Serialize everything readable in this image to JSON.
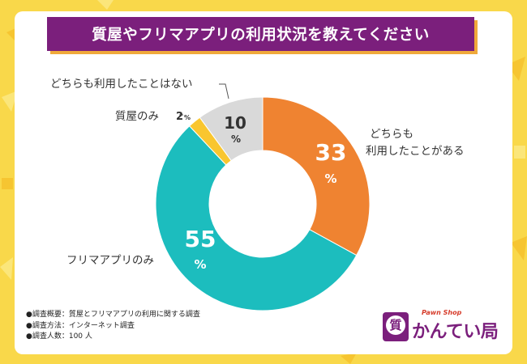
{
  "title": "質屋やフリマアプリの利用状況を教えてください",
  "chart_data": {
    "type": "pie",
    "categories": [
      "どちらも利用したことがある",
      "フリマアプリのみ",
      "質屋のみ",
      "どちらも利用したことはない"
    ],
    "values": [
      33,
      55,
      2,
      10
    ],
    "unit": "%",
    "value_labels": [
      "33",
      "55",
      "2",
      "10"
    ],
    "category_labels": {
      "both": [
        "どちらも",
        "利用したことがある"
      ],
      "flea": "フリマアプリのみ",
      "pawn": "質屋のみ",
      "neither": "どちらも利用したことはない"
    },
    "colors": [
      "#ef8331",
      "#1cbdbe",
      "#f9c62f",
      "#d9d9d9"
    ],
    "donut": true
  },
  "notes": [
    "●調査概要：質屋とフリマアプリの利用に関する調査",
    "●調査方法：インターネット調査",
    "●調査人数：100 人"
  ],
  "logo": {
    "tagline": "Pawn Shop",
    "badge": "質",
    "name": "かんてい局"
  },
  "colors": {
    "background": "#f9d84a",
    "title_bar": "#7b1f7c",
    "title_shadow": "#f0a93a"
  }
}
